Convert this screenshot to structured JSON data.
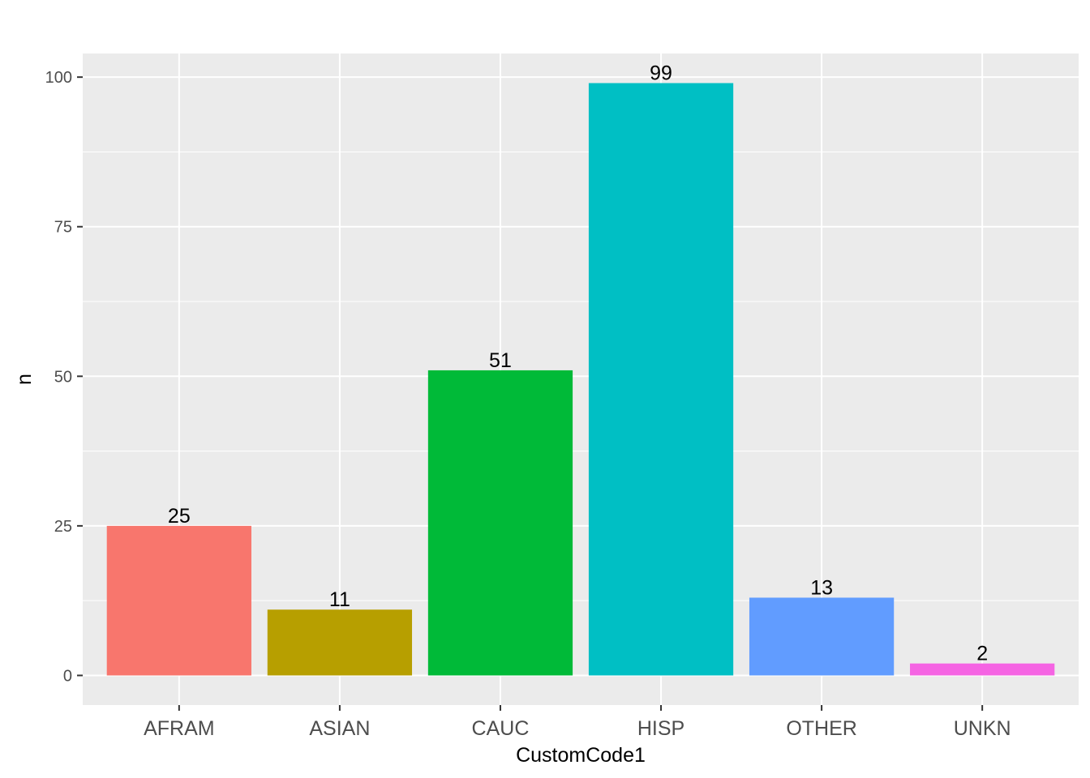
{
  "chart_data": {
    "type": "bar",
    "title": "",
    "xlabel": "CustomCode1",
    "ylabel": "n",
    "categories": [
      "AFRAM",
      "ASIAN",
      "CAUC",
      "HISP",
      "OTHER",
      "UNKN"
    ],
    "values": [
      25,
      11,
      51,
      99,
      13,
      2
    ],
    "data_labels": [
      "25",
      "11",
      "51",
      "99",
      "13",
      "2"
    ],
    "colors": [
      "#F8766D",
      "#B79F00",
      "#00BA38",
      "#00BFC4",
      "#619CFF",
      "#F564E3"
    ],
    "ylim": [
      -4.95,
      103.95
    ],
    "y_ticks": [
      0,
      25,
      50,
      75,
      100
    ],
    "y_tick_labels": [
      "0",
      "25",
      "50",
      "75",
      "100"
    ],
    "grid": true,
    "legend": "none",
    "panel_background": "#EBEBEB"
  }
}
